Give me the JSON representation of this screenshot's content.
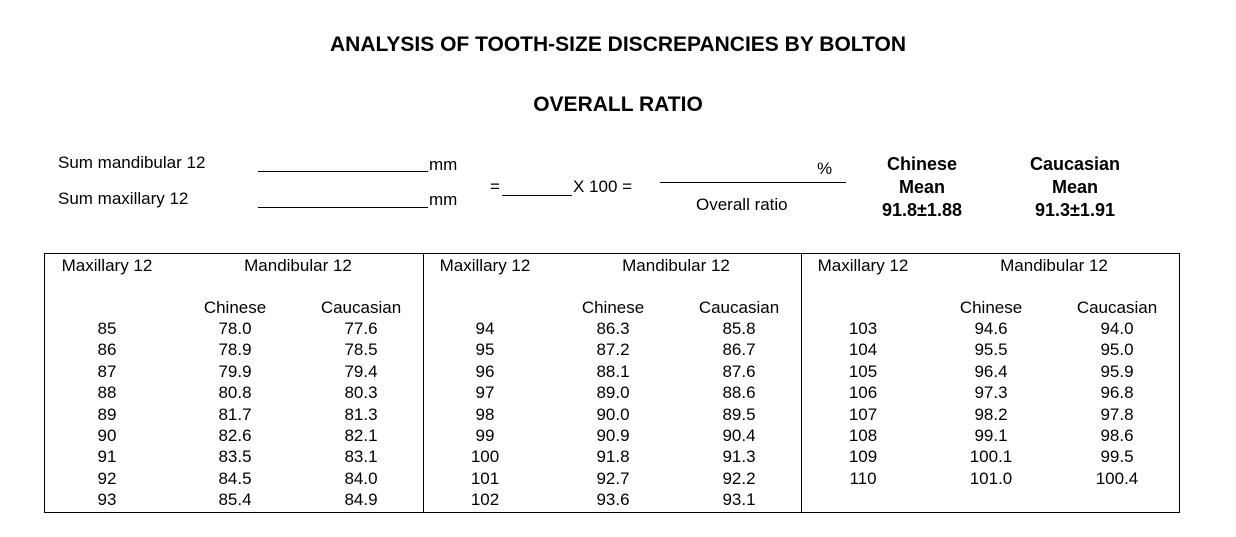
{
  "title": "ANALYSIS OF TOOTH-SIZE DISCREPANCIES BY BOLTON",
  "subtitle": "OVERALL RATIO",
  "formula": {
    "sum_mandibular_label": "Sum mandibular 12",
    "sum_maxillary_label": "Sum maxillary 12",
    "unit_mm": "mm",
    "equals": "=",
    "times_100": "X 100 =",
    "percent": "%",
    "overall_ratio_label": "Overall ratio"
  },
  "means": [
    {
      "group": "Chinese",
      "label": "Mean",
      "value": "91.8±1.88"
    },
    {
      "group": "Caucasian",
      "label": "Mean",
      "value": "91.3±1.91"
    }
  ],
  "table": {
    "headers": {
      "maxillary": "Maxillary 12",
      "mandibular": "Mandibular 12",
      "chinese": "Chinese",
      "caucasian": "Caucasian"
    },
    "sections": [
      {
        "rows": [
          [
            "85",
            "78.0",
            "77.6"
          ],
          [
            "86",
            "78.9",
            "78.5"
          ],
          [
            "87",
            "79.9",
            "79.4"
          ],
          [
            "88",
            "80.8",
            "80.3"
          ],
          [
            "89",
            "81.7",
            "81.3"
          ],
          [
            "90",
            "82.6",
            "82.1"
          ],
          [
            "91",
            "83.5",
            "83.1"
          ],
          [
            "92",
            "84.5",
            "84.0"
          ],
          [
            "93",
            "85.4",
            "84.9"
          ]
        ]
      },
      {
        "rows": [
          [
            "94",
            "86.3",
            "85.8"
          ],
          [
            "95",
            "87.2",
            "86.7"
          ],
          [
            "96",
            "88.1",
            "87.6"
          ],
          [
            "97",
            "89.0",
            "88.6"
          ],
          [
            "98",
            "90.0",
            "89.5"
          ],
          [
            "99",
            "90.9",
            "90.4"
          ],
          [
            "100",
            "91.8",
            "91.3"
          ],
          [
            "101",
            "92.7",
            "92.2"
          ],
          [
            "102",
            "93.6",
            "93.1"
          ]
        ]
      },
      {
        "rows": [
          [
            "103",
            "94.6",
            "94.0"
          ],
          [
            "104",
            "95.5",
            "95.0"
          ],
          [
            "105",
            "96.4",
            "95.9"
          ],
          [
            "106",
            "97.3",
            "96.8"
          ],
          [
            "107",
            "98.2",
            "97.8"
          ],
          [
            "108",
            "99.1",
            "98.6"
          ],
          [
            "109",
            "100.1",
            "99.5"
          ],
          [
            "110",
            "101.0",
            "100.4"
          ]
        ]
      }
    ]
  }
}
